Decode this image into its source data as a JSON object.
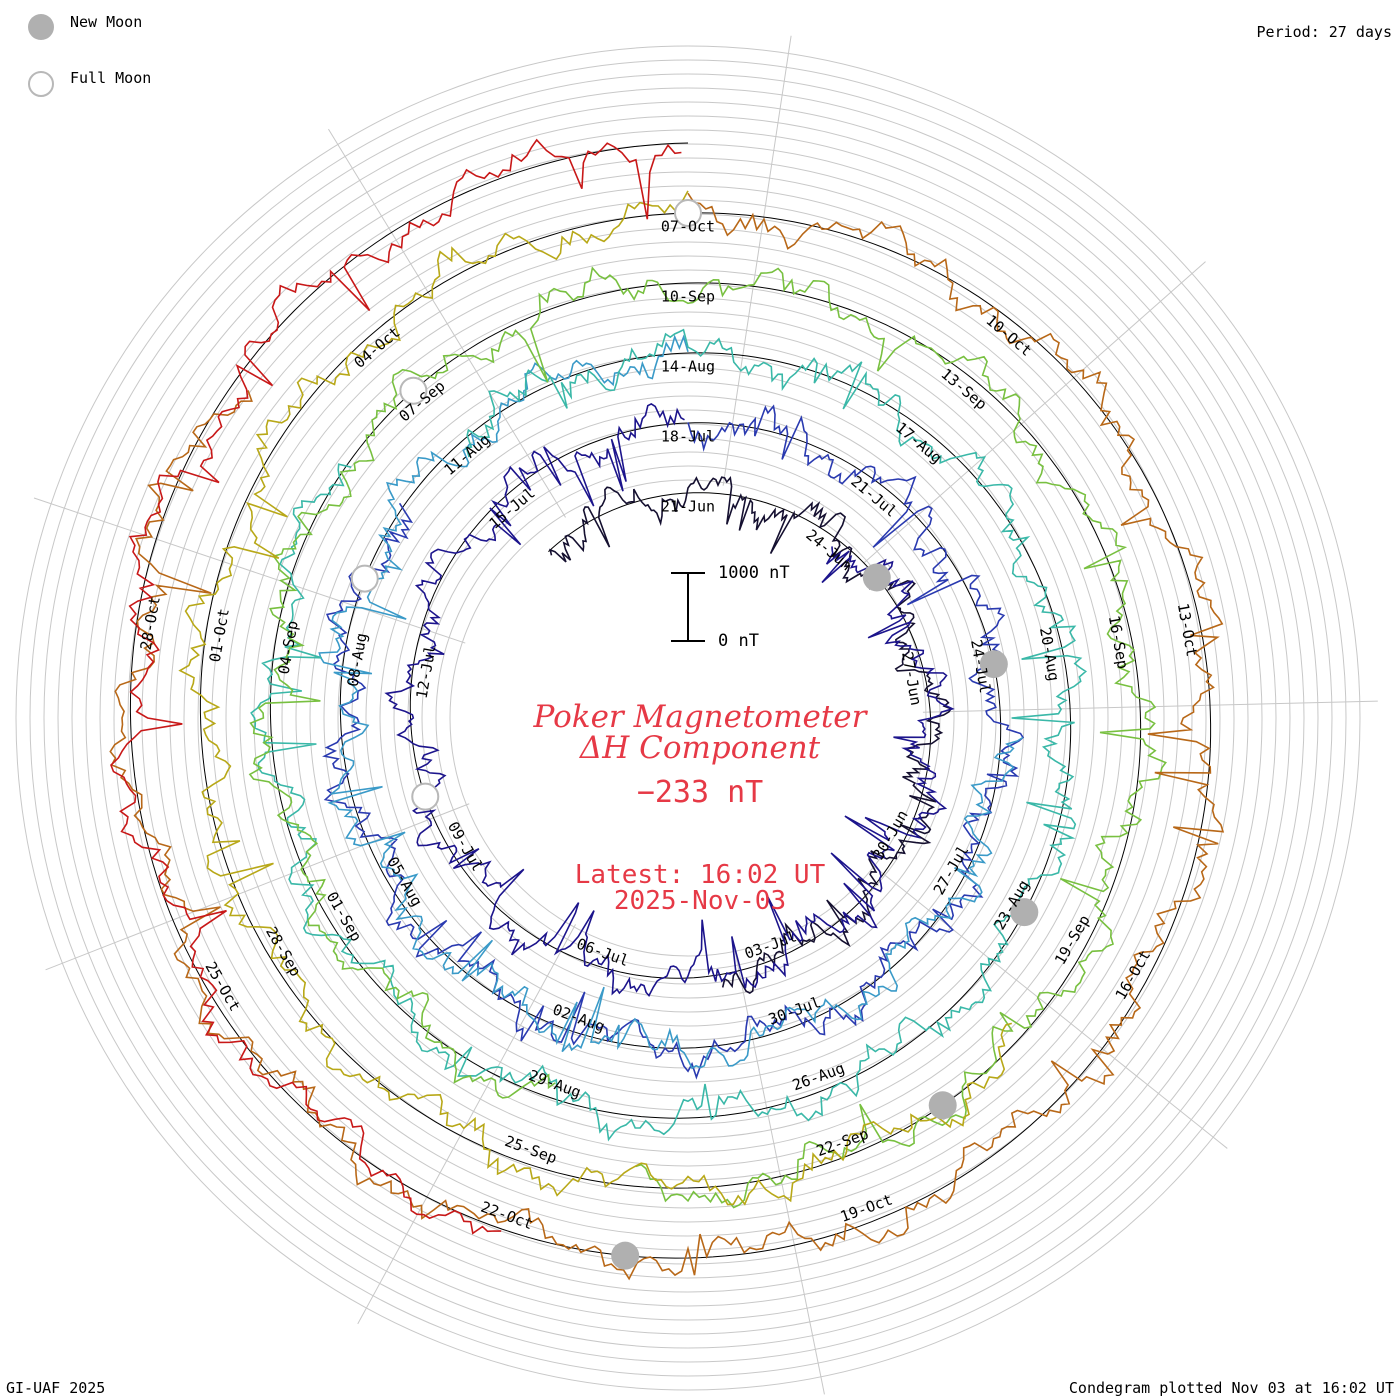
{
  "legend": {
    "new_moon_label": "New Moon",
    "full_moon_label": "Full Moon"
  },
  "period_label": "Period: 27 days",
  "footer": {
    "left": "GI-UAF 2025",
    "right": "Condegram plotted Nov 03 at 16:02 UT"
  },
  "center": {
    "title_line1": "Poker Magnetometer",
    "title_line2": "ΔH Component",
    "current_value": "−233 nT",
    "latest_label": "Latest: 16:02 UT",
    "latest_date": "2025-Nov-03"
  },
  "scale_bar": {
    "top_label": "1000 nT",
    "bottom_label": "0 nT"
  },
  "colors": {
    "accent": "#e63946",
    "grid": "#c8c8c8",
    "baseline": "#000000",
    "moon_new": "#b0b0b0",
    "moon_full": "#b8b8b8",
    "rotation_1": "#151030",
    "rotation_2": "#1c148c",
    "rotation_3": "#2a3ab0",
    "rotation_4": "#3a9ac8",
    "rotation_5": "#3ab8a8",
    "rotation_6": "#78c040",
    "rotation_7": "#b8a818",
    "rotation_8": "#b86818",
    "rotation_9": "#c81818"
  },
  "chart_data": {
    "type": "line",
    "subtype": "condegram spiral",
    "title": "Poker Magnetometer ΔH Component",
    "period_days": 27,
    "unit": "nT",
    "current_value": -233,
    "scale_bar_nT": [
      0,
      1000
    ],
    "rotations": [
      {
        "name": "rotation-1",
        "color": "#151030",
        "start": "2025-Jun-18",
        "end": "2025-Jul-04"
      },
      {
        "name": "rotation-2",
        "color": "#1c148c",
        "start": "2025-Jun-24",
        "end": "2025-Jul-18"
      },
      {
        "name": "rotation-3",
        "color": "#2a3ab0",
        "start": "2025-Jul-18",
        "end": "2025-Aug-10"
      },
      {
        "name": "rotation-4",
        "color": "#3a9ac8",
        "start": "2025-Jul-25",
        "end": "2025-Aug-14"
      },
      {
        "name": "rotation-5",
        "color": "#3ab8a8",
        "start": "2025-Aug-11",
        "end": "2025-Sep-06"
      },
      {
        "name": "rotation-6",
        "color": "#78c040",
        "start": "2025-Aug-29",
        "end": "2025-Sep-24"
      },
      {
        "name": "rotation-7",
        "color": "#b8a818",
        "start": "2025-Sep-20",
        "end": "2025-Oct-07"
      },
      {
        "name": "rotation-8",
        "color": "#b86818",
        "start": "2025-Oct-07",
        "end": "2025-Oct-30"
      },
      {
        "name": "rotation-9",
        "color": "#c81818",
        "start": "2025-Oct-22",
        "end": "2025-Nov-03"
      }
    ],
    "date_labels": [
      "21-Jun",
      "24-Jun",
      "27-Jun",
      "30-Jun",
      "03-Jul",
      "06-Jul",
      "09-Jul",
      "12-Jul",
      "15-Jul",
      "18-Jul",
      "21-Jul",
      "24-Jul",
      "27-Jul",
      "30-Jul",
      "02-Aug",
      "05-Aug",
      "08-Aug",
      "11-Aug",
      "14-Aug",
      "17-Aug",
      "20-Aug",
      "23-Aug",
      "26-Aug",
      "29-Aug",
      "01-Sep",
      "04-Sep",
      "07-Sep",
      "10-Sep",
      "13-Sep",
      "16-Sep",
      "19-Sep",
      "22-Sep",
      "25-Sep",
      "28-Sep",
      "01-Oct",
      "04-Oct",
      "07-Oct",
      "10-Oct",
      "13-Oct",
      "16-Oct",
      "19-Oct",
      "22-Oct",
      "25-Oct",
      "28-Oct"
    ],
    "moon_phases": [
      {
        "type": "new",
        "date": "2025-Jun-25"
      },
      {
        "type": "new",
        "date": "2025-Jul-24"
      },
      {
        "type": "new",
        "date": "2025-Aug-23"
      },
      {
        "type": "new",
        "date": "2025-Sep-21"
      },
      {
        "type": "new",
        "date": "2025-Oct-21"
      },
      {
        "type": "full",
        "date": "2025-Jul-10"
      },
      {
        "type": "full",
        "date": "2025-Aug-09"
      },
      {
        "type": "full",
        "date": "2025-Sep-07"
      },
      {
        "type": "full",
        "date": "2025-Oct-07"
      }
    ]
  }
}
